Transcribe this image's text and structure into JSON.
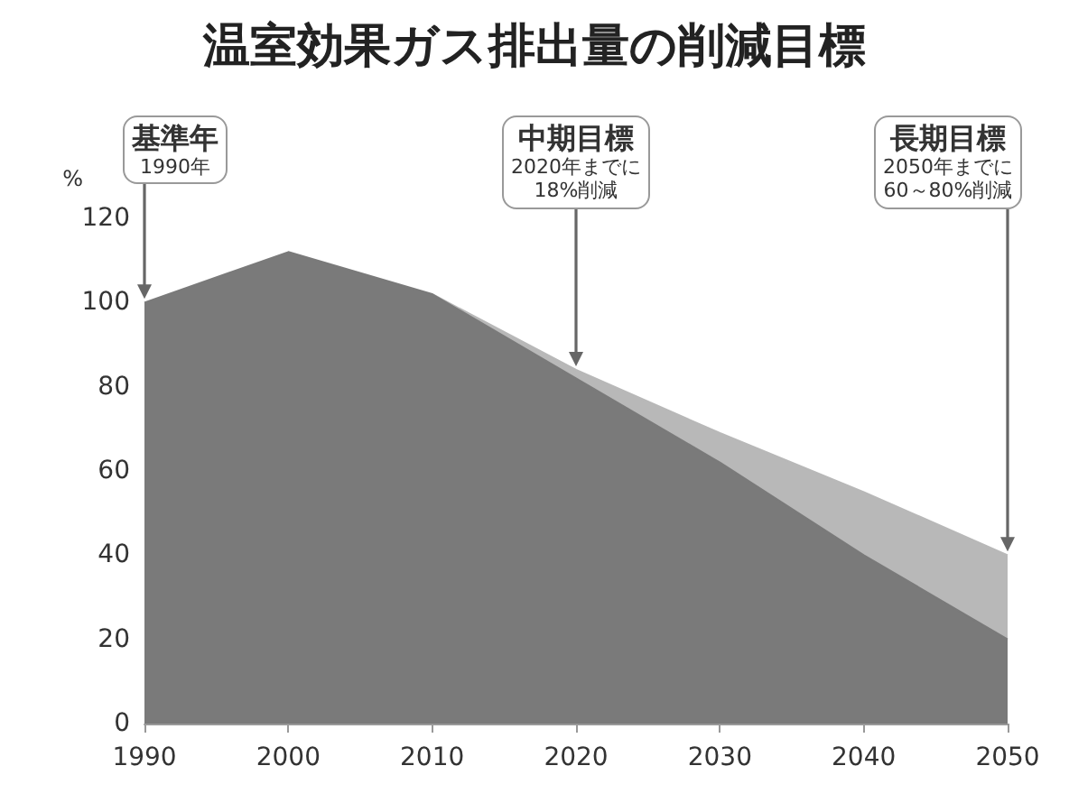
{
  "chart_data": {
    "type": "area",
    "title": "温室効果ガス排出量の削減目標",
    "ylabel": "%",
    "x": [
      1990,
      2000,
      2010,
      2020,
      2030,
      2040,
      2050
    ],
    "series": [
      {
        "color": "#7a7a7a",
        "values": [
          100,
          112,
          102,
          82,
          62,
          40,
          20
        ]
      },
      {
        "color": "#b8b8b8",
        "values": [
          null,
          null,
          0,
          2,
          7,
          15,
          20
        ]
      }
    ],
    "stacked": true,
    "xlim": [
      1990,
      2050
    ],
    "xticks": [
      1990,
      2000,
      2010,
      2020,
      2030,
      2040,
      2050
    ],
    "ylim": [
      0,
      120
    ],
    "yticks": [
      0,
      20,
      40,
      60,
      80,
      100,
      120
    ],
    "grid": false,
    "annotations": [
      "基準年\n1990年",
      "中期目標\n2020年までに\n18%削減",
      "長期目標\n2050年までに\n60～80%削減"
    ]
  }
}
